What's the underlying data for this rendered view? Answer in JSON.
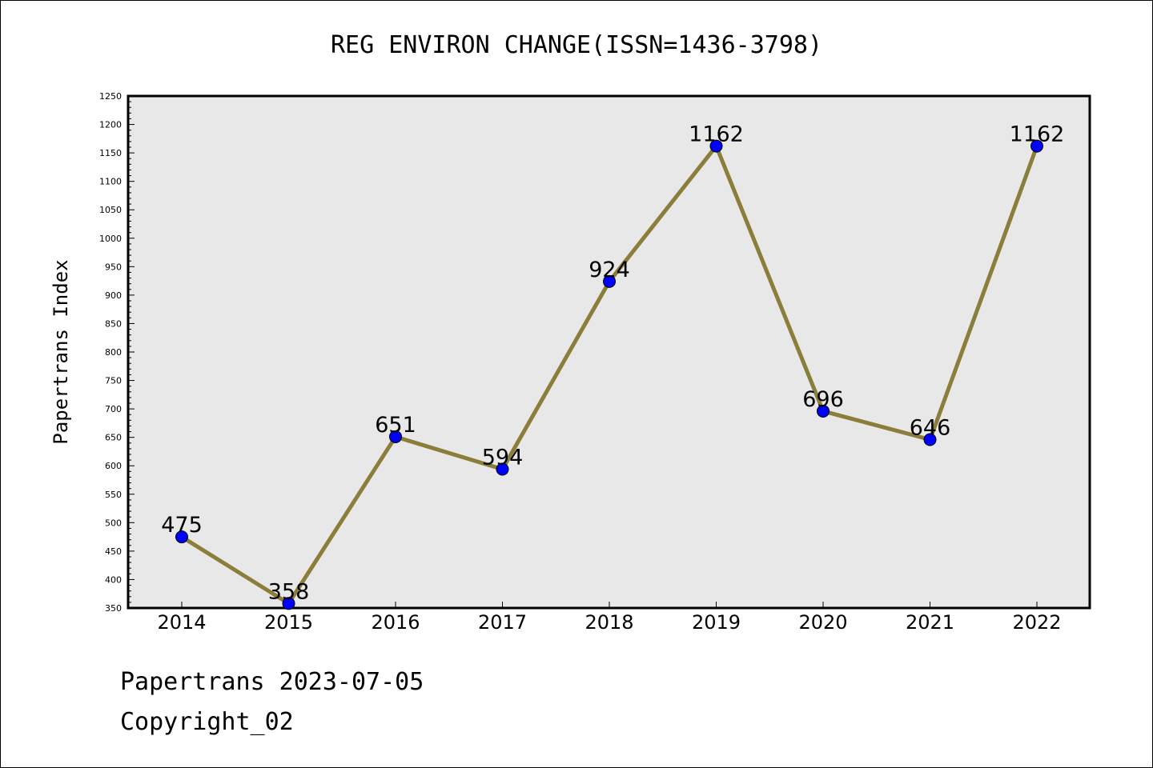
{
  "chart_data": {
    "type": "line",
    "title": "REG ENVIRON CHANGE(ISSN=1436-3798)",
    "xlabel": "",
    "ylabel": "Papertrans Index",
    "x": [
      "2014",
      "2015",
      "2016",
      "2017",
      "2018",
      "2019",
      "2020",
      "2021",
      "2022"
    ],
    "series": [
      {
        "values": [
          475,
          358,
          651,
          594,
          924,
          1162,
          696,
          646,
          1162
        ]
      }
    ],
    "data_labels": [
      "475",
      "358",
      "651",
      "594",
      "924",
      "1162",
      "696",
      "646",
      "1162"
    ],
    "ylim": [
      350,
      1250
    ],
    "yticks": [
      350,
      400,
      450,
      500,
      550,
      600,
      650,
      700,
      750,
      800,
      850,
      900,
      950,
      1000,
      1050,
      1100,
      1150,
      1200,
      1250
    ],
    "grid": false,
    "line_color": "#8b7d3a",
    "marker_color": "#0000ff",
    "plot_background": "#e8e8e8"
  },
  "footer": {
    "date_line": "Papertrans 2023-07-05",
    "copyright": "Copyright_02"
  }
}
